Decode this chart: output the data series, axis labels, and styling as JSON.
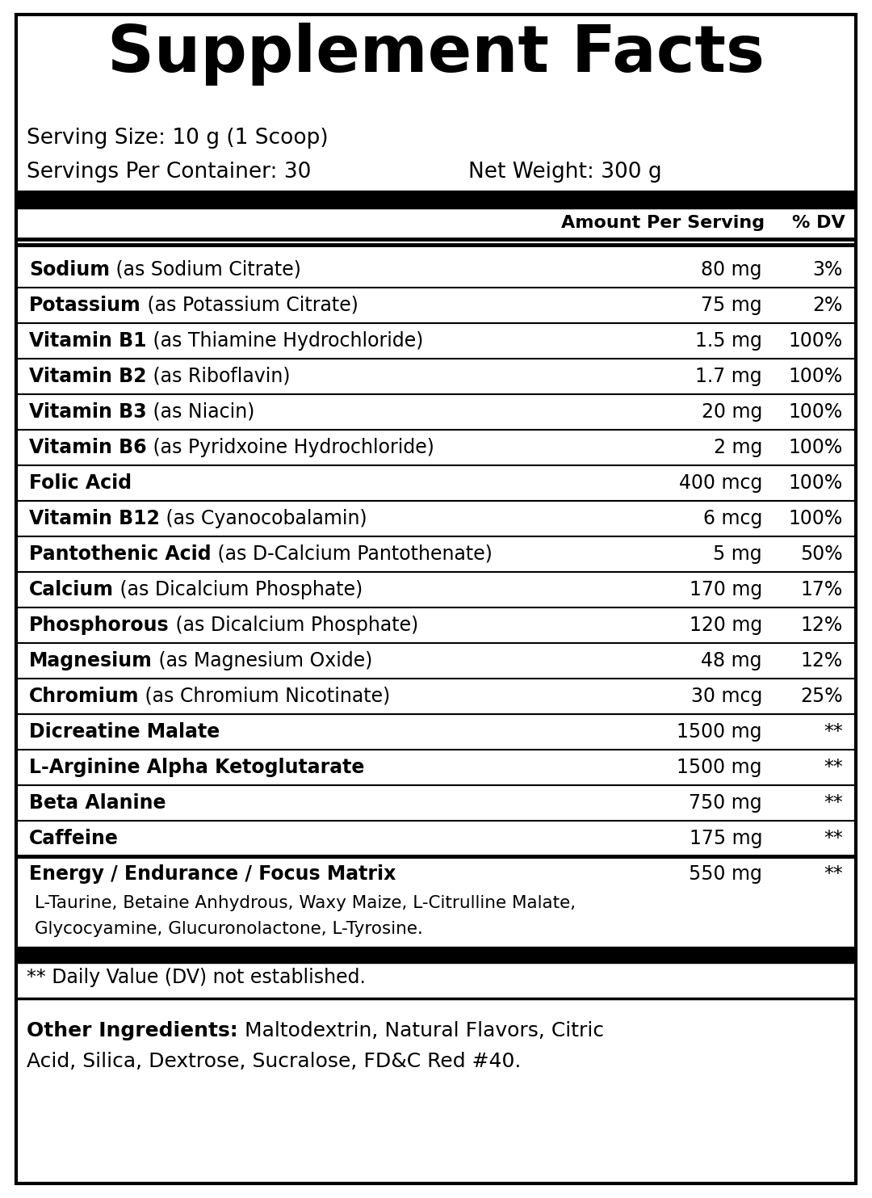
{
  "title": "Supplement Facts",
  "serving_size": "Serving Size: 10 g (1 Scoop)",
  "servings_per_container": "Servings Per Container: 30",
  "net_weight": "Net Weight: 300 g",
  "header_amount": "Amount Per Serving",
  "header_dv": "% DV",
  "rows": [
    {
      "name_bold": "Sodium",
      "name_regular": " (as Sodium Citrate)",
      "amount": "80 mg",
      "dv": "3%"
    },
    {
      "name_bold": "Potassium",
      "name_regular": " (as Potassium Citrate)",
      "amount": "75 mg",
      "dv": "2%"
    },
    {
      "name_bold": "Vitamin B1",
      "name_regular": " (as Thiamine Hydrochloride)",
      "amount": "1.5 mg",
      "dv": "100%"
    },
    {
      "name_bold": "Vitamin B2",
      "name_regular": " (as Riboflavin)",
      "amount": "1.7 mg",
      "dv": "100%"
    },
    {
      "name_bold": "Vitamin B3",
      "name_regular": " (as Niacin)",
      "amount": "20 mg",
      "dv": "100%"
    },
    {
      "name_bold": "Vitamin B6",
      "name_regular": " (as Pyridxoine Hydrochloride)",
      "amount": "2 mg",
      "dv": "100%"
    },
    {
      "name_bold": "Folic Acid",
      "name_regular": "",
      "amount": "400 mcg",
      "dv": "100%"
    },
    {
      "name_bold": "Vitamin B12",
      "name_regular": " (as Cyanocobalamin)",
      "amount": "6 mcg",
      "dv": "100%"
    },
    {
      "name_bold": "Pantothenic Acid",
      "name_regular": " (as D-Calcium Pantothenate)",
      "amount": "5 mg",
      "dv": "50%"
    },
    {
      "name_bold": "Calcium",
      "name_regular": " (as Dicalcium Phosphate)",
      "amount": "170 mg",
      "dv": "17%"
    },
    {
      "name_bold": "Phosphorous",
      "name_regular": " (as Dicalcium Phosphate)",
      "amount": "120 mg",
      "dv": "12%"
    },
    {
      "name_bold": "Magnesium",
      "name_regular": " (as Magnesium Oxide)",
      "amount": "48 mg",
      "dv": "12%"
    },
    {
      "name_bold": "Chromium",
      "name_regular": " (as Chromium Nicotinate)",
      "amount": "30 mcg",
      "dv": "25%"
    },
    {
      "name_bold": "Dicreatine Malate",
      "name_regular": "",
      "amount": "1500 mg",
      "dv": "**"
    },
    {
      "name_bold": "L-Arginine Alpha Ketoglutarate",
      "name_regular": "",
      "amount": "1500 mg",
      "dv": "**"
    },
    {
      "name_bold": "Beta Alanine",
      "name_regular": "",
      "amount": "750 mg",
      "dv": "**"
    },
    {
      "name_bold": "Caffeine",
      "name_regular": "",
      "amount": "175 mg",
      "dv": "**"
    },
    {
      "name_bold": "Energy / Endurance / Focus Matrix",
      "name_regular": "",
      "amount": "550 mg",
      "dv": "**"
    }
  ],
  "matrix_detail_line1": " L-Taurine, Betaine Anhydrous, Waxy Maize, L-Citrulline Malate,",
  "matrix_detail_line2": " Glycocyamine, Glucuronolactone, L-Tyrosine.",
  "footnote": "** Daily Value (DV) not established.",
  "other_ingredients_bold": "Other Ingredients:",
  "other_ingredients_regular": " Maltodextrin, Natural Flavors, Citric Acid, Silica, Dextrose, Sucralose, FD&C Red #40.",
  "bg_color": "#ffffff",
  "text_color": "#000000",
  "border_color": "#000000",
  "thick_bar_color": "#000000",
  "thin_line_color": "#000000",
  "fig_width": 10.8,
  "fig_height": 14.83,
  "dpi": 100
}
